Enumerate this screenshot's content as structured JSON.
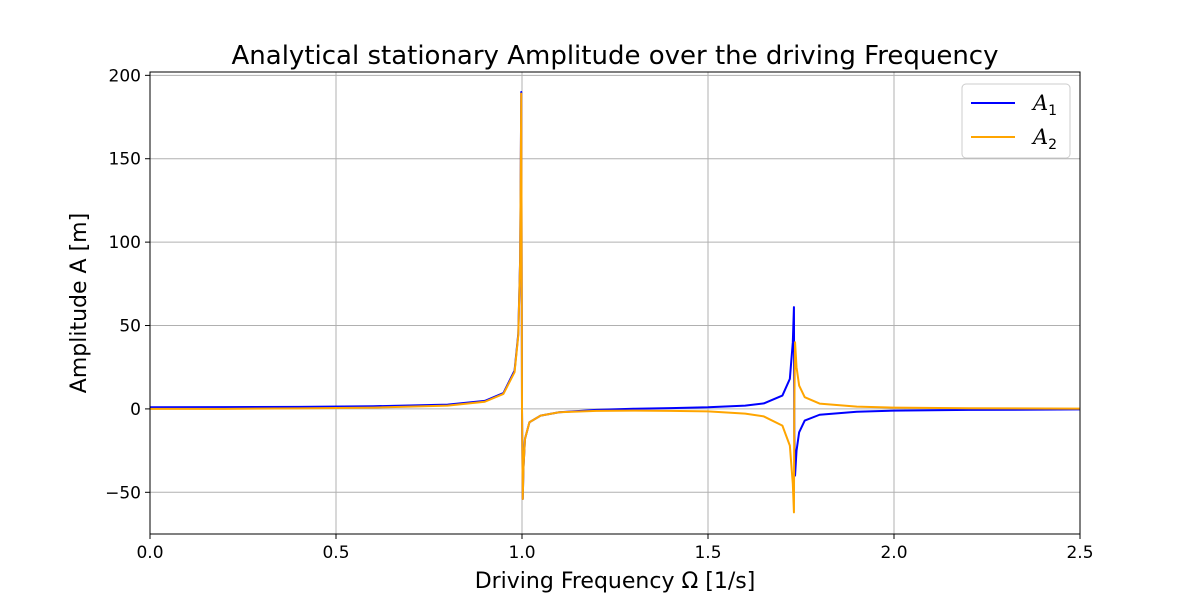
{
  "chart_data": {
    "type": "line",
    "title": "Analytical stationary Amplitude over the driving Frequency",
    "xlabel": "Driving Frequency Ω [1/s]",
    "ylabel": "Amplitude A [m]",
    "xlim": [
      0.0,
      2.5
    ],
    "ylim": [
      -75,
      202
    ],
    "xticks": [
      0.0,
      0.5,
      1.0,
      1.5,
      2.0,
      2.5
    ],
    "xtick_labels": [
      "0.0",
      "0.5",
      "1.0",
      "1.5",
      "2.0",
      "2.5"
    ],
    "yticks": [
      -50,
      0,
      50,
      100,
      150,
      200
    ],
    "ytick_labels": [
      "−50",
      "0",
      "50",
      "100",
      "150",
      "200"
    ],
    "grid": true,
    "legend_position": "top-right",
    "series": [
      {
        "name": "A1",
        "legend_base": "A",
        "legend_sub": "1",
        "color": "#0000ff",
        "x": [
          0.0,
          0.2,
          0.4,
          0.6,
          0.8,
          0.9,
          0.95,
          0.98,
          0.99,
          0.995,
          0.998,
          1.0,
          1.002,
          1.004,
          1.008,
          1.02,
          1.05,
          1.1,
          1.2,
          1.3,
          1.4,
          1.5,
          1.6,
          1.65,
          1.7,
          1.72,
          1.728,
          1.731,
          1.732,
          1.734,
          1.738,
          1.745,
          1.76,
          1.8,
          1.9,
          2.0,
          2.2,
          2.5
        ],
        "y": [
          1.0,
          1.05,
          1.2,
          1.6,
          2.6,
          4.8,
          9.5,
          23,
          45,
          90,
          190,
          0,
          -54,
          -35,
          -18,
          -8,
          -4,
          -2,
          -0.6,
          0.1,
          0.5,
          1.0,
          2.0,
          3.3,
          8,
          18,
          40,
          61,
          -15,
          -40,
          -25,
          -14,
          -7,
          -3.5,
          -1.7,
          -1.0,
          -0.6,
          -0.3
        ]
      },
      {
        "name": "A2",
        "legend_base": "A",
        "legend_sub": "2",
        "color": "#ffa500",
        "x": [
          0.0,
          0.2,
          0.4,
          0.6,
          0.8,
          0.9,
          0.95,
          0.98,
          0.99,
          0.995,
          0.998,
          1.0,
          1.002,
          1.004,
          1.008,
          1.02,
          1.05,
          1.1,
          1.2,
          1.3,
          1.4,
          1.5,
          1.6,
          1.65,
          1.7,
          1.72,
          1.728,
          1.731,
          1.732,
          1.734,
          1.738,
          1.745,
          1.76,
          1.8,
          1.9,
          2.0,
          2.2,
          2.5
        ],
        "y": [
          0.0,
          0.05,
          0.3,
          0.8,
          2.0,
          4.3,
          9.0,
          22,
          44,
          89,
          189,
          0,
          -54,
          -35,
          -18,
          -8,
          -4,
          -2,
          -1.2,
          -1.0,
          -1.2,
          -1.5,
          -2.8,
          -4.5,
          -10,
          -22,
          -45,
          -62,
          0,
          40,
          25,
          14,
          7,
          3.2,
          1.4,
          0.8,
          0.4,
          0.2
        ]
      }
    ]
  }
}
